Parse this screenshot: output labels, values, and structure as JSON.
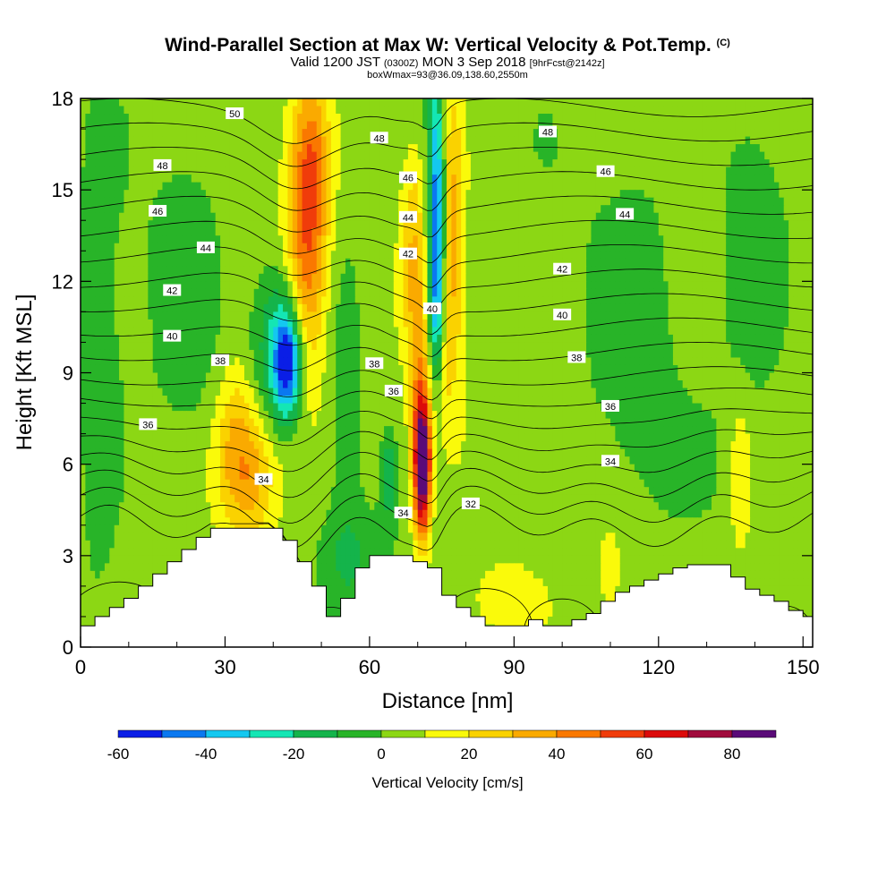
{
  "title": {
    "main": "Wind-Parallel Section at Max W: Vertical Velocity & Pot.Temp.",
    "copyright": "(C)",
    "valid_prefix": "Valid 1200 JST",
    "valid_utc": "(0300Z)",
    "valid_date": "MON 3 Sep 2018",
    "forecast": "[9hrFcst@2142z]",
    "box_info": "boxWmax=93@36.09,138.60,2550m"
  },
  "chart_data": {
    "type": "heatmap",
    "xlabel": "Distance [nm]",
    "ylabel": "Height [Kft MSL]",
    "xlim": [
      0,
      152
    ],
    "ylim": [
      0,
      18
    ],
    "xticks": [
      0,
      30,
      60,
      90,
      120,
      150
    ],
    "yticks": [
      0,
      3,
      6,
      9,
      12,
      15,
      18
    ],
    "fill_variable": "vertical velocity (cm/s)",
    "contour_variable": "potential temperature",
    "colorbar": {
      "label": "Vertical Velocity [cm/s]",
      "ticks": [
        -60,
        -40,
        -20,
        0,
        20,
        40,
        60,
        80
      ],
      "levels": [
        -60,
        -50,
        -40,
        -30,
        -20,
        -10,
        0,
        10,
        20,
        30,
        40,
        50,
        60,
        70,
        80,
        90
      ],
      "colors": [
        "#0a1ee6",
        "#0a78f0",
        "#14c8f0",
        "#14e6b4",
        "#14b44b",
        "#28b428",
        "#8cd714",
        "#fafa0a",
        "#fad200",
        "#faaa00",
        "#fa7800",
        "#f03c0a",
        "#dc0a0a",
        "#a00a3c",
        "#5a0a78"
      ]
    },
    "velocity_features": [
      {
        "x": 47,
        "y": 13.0,
        "sx": 3.0,
        "sy": 3.2,
        "w": 40
      },
      {
        "x": 48,
        "y": 16.0,
        "sx": 2.5,
        "sy": 2.0,
        "w": 22
      },
      {
        "x": 35,
        "y": 5.5,
        "sx": 4.5,
        "sy": 1.5,
        "w": 35
      },
      {
        "x": 32,
        "y": 7.5,
        "sx": 3.0,
        "sy": 1.5,
        "w": 18
      },
      {
        "x": 71,
        "y": 6.0,
        "sx": 1.2,
        "sy": 1.6,
        "w": 93
      },
      {
        "x": 70,
        "y": 8.5,
        "sx": 1.5,
        "sy": 3.0,
        "w": 22
      },
      {
        "x": 69,
        "y": 13.5,
        "sx": 1.8,
        "sy": 2.5,
        "w": 20
      },
      {
        "x": 77,
        "y": 14.0,
        "sx": 2.0,
        "sy": 3.5,
        "w": 30
      },
      {
        "x": 75,
        "y": 10.0,
        "sx": 2.0,
        "sy": 2.0,
        "w": 15
      },
      {
        "x": 74,
        "y": 14.5,
        "sx": 1.2,
        "sy": 3.0,
        "w": -55
      },
      {
        "x": 74,
        "y": 11.0,
        "sx": 1.2,
        "sy": 1.8,
        "w": -35
      },
      {
        "x": 43,
        "y": 9.3,
        "sx": 2.0,
        "sy": 1.2,
        "w": -55
      },
      {
        "x": 41,
        "y": 10.0,
        "sx": 3.5,
        "sy": 1.8,
        "w": -25
      },
      {
        "x": 64,
        "y": 5.5,
        "sx": 1.0,
        "sy": 1.0,
        "w": -22
      },
      {
        "x": 137,
        "y": 5.5,
        "sx": 1.5,
        "sy": 1.8,
        "w": 18
      },
      {
        "x": 110,
        "y": 2.5,
        "sx": 1.5,
        "sy": 1.0,
        "w": 15
      },
      {
        "x": 56,
        "y": 3.0,
        "sx": 4.0,
        "sy": 1.0,
        "w": -12
      },
      {
        "x": 88,
        "y": 1.5,
        "sx": 5.0,
        "sy": 0.8,
        "w": 15
      },
      {
        "x": 4,
        "y": 8.0,
        "sx": 3.0,
        "sy": 5.0,
        "w": -12
      },
      {
        "x": 140,
        "y": 14.0,
        "sx": 6.0,
        "sy": 4.0,
        "w": -10
      },
      {
        "x": 115,
        "y": 10.0,
        "sx": 6.0,
        "sy": 5.0,
        "w": -8
      },
      {
        "x": 22,
        "y": 12.0,
        "sx": 5.0,
        "sy": 4.0,
        "w": -8
      },
      {
        "x": 55,
        "y": 8.0,
        "sx": 2.5,
        "sy": 4.0,
        "w": -10
      }
    ],
    "terrain": {
      "x": [
        0,
        3,
        6,
        9,
        12,
        15,
        18,
        21,
        24,
        27,
        30,
        33,
        36,
        39,
        42,
        45,
        48,
        51,
        54,
        57,
        60,
        63,
        66,
        69,
        72,
        75,
        78,
        81,
        84,
        87,
        90,
        93,
        96,
        99,
        102,
        105,
        108,
        111,
        114,
        117,
        120,
        123,
        126,
        129,
        132,
        135,
        138,
        141,
        144,
        147,
        150,
        152
      ],
      "top": [
        0.7,
        1.0,
        1.3,
        1.6,
        2.0,
        2.4,
        2.8,
        3.2,
        3.6,
        3.9,
        3.9,
        3.9,
        3.9,
        3.9,
        3.5,
        2.8,
        2.0,
        1.0,
        1.6,
        2.6,
        3.0,
        3.0,
        3.0,
        2.8,
        2.6,
        1.7,
        1.3,
        1.0,
        0.7,
        0.7,
        0.7,
        0.9,
        0.7,
        0.7,
        0.9,
        1.1,
        1.5,
        1.8,
        2.0,
        2.2,
        2.4,
        2.6,
        2.7,
        2.7,
        2.7,
        2.3,
        1.9,
        1.7,
        1.5,
        1.2,
        1.0,
        1.0
      ]
    },
    "theta_contours": [
      {
        "level": 32,
        "base": 4.0
      },
      {
        "level": 33,
        "base": 4.7
      },
      {
        "level": 34,
        "base": 5.4
      },
      {
        "level": 35,
        "base": 6.1
      },
      {
        "level": 36,
        "base": 6.8
      },
      {
        "level": 37,
        "base": 7.5
      },
      {
        "level": 38,
        "base": 8.2
      },
      {
        "level": 39,
        "base": 8.9
      },
      {
        "level": 40,
        "base": 9.7
      },
      {
        "level": 41,
        "base": 10.5
      },
      {
        "level": 42,
        "base": 11.3
      },
      {
        "level": 43,
        "base": 12.1
      },
      {
        "level": 44,
        "base": 12.9
      },
      {
        "level": 45,
        "base": 13.7
      },
      {
        "level": 46,
        "base": 14.5
      },
      {
        "level": 47,
        "base": 15.3
      },
      {
        "level": 48,
        "base": 16.1
      },
      {
        "level": 49,
        "base": 16.9
      },
      {
        "level": 50,
        "base": 17.7
      }
    ],
    "contour_labels": [
      {
        "text": "50",
        "x": 32,
        "y": 17.5
      },
      {
        "text": "48",
        "x": 17,
        "y": 15.8
      },
      {
        "text": "46",
        "x": 16,
        "y": 14.3
      },
      {
        "text": "44",
        "x": 26,
        "y": 13.1
      },
      {
        "text": "42",
        "x": 19,
        "y": 11.7
      },
      {
        "text": "40",
        "x": 19,
        "y": 10.2
      },
      {
        "text": "38",
        "x": 29,
        "y": 9.4
      },
      {
        "text": "36",
        "x": 14,
        "y": 7.3
      },
      {
        "text": "34",
        "x": 38,
        "y": 5.5
      },
      {
        "text": "48",
        "x": 62,
        "y": 16.7
      },
      {
        "text": "46",
        "x": 68,
        "y": 15.4
      },
      {
        "text": "44",
        "x": 68,
        "y": 14.1
      },
      {
        "text": "42",
        "x": 68,
        "y": 12.9
      },
      {
        "text": "40",
        "x": 73,
        "y": 11.1
      },
      {
        "text": "38",
        "x": 61,
        "y": 9.3
      },
      {
        "text": "36",
        "x": 65,
        "y": 8.4
      },
      {
        "text": "34",
        "x": 67,
        "y": 4.4
      },
      {
        "text": "32",
        "x": 81,
        "y": 4.7
      },
      {
        "text": "48",
        "x": 97,
        "y": 16.9
      },
      {
        "text": "46",
        "x": 109,
        "y": 15.6
      },
      {
        "text": "44",
        "x": 113,
        "y": 14.2
      },
      {
        "text": "42",
        "x": 100,
        "y": 12.4
      },
      {
        "text": "40",
        "x": 100,
        "y": 10.9
      },
      {
        "text": "38",
        "x": 103,
        "y": 9.5
      },
      {
        "text": "36",
        "x": 110,
        "y": 7.9
      },
      {
        "text": "34",
        "x": 110,
        "y": 6.1
      }
    ]
  }
}
